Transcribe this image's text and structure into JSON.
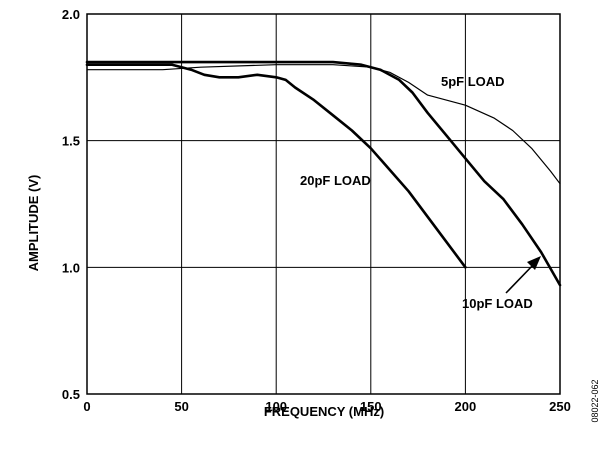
{
  "chart_data": {
    "type": "line",
    "xlabel": "FREQUENCY (MHz)",
    "ylabel": "AMPLITUDE (V)",
    "xlim": [
      0,
      250
    ],
    "ylim": [
      0.5,
      2.0
    ],
    "x_ticks": [
      "0",
      "50",
      "100",
      "150",
      "200",
      "250"
    ],
    "y_ticks": [
      "0.5",
      "1.0",
      "1.5",
      "2.0"
    ],
    "x_tick_values": [
      0,
      50,
      100,
      150,
      200,
      250
    ],
    "y_tick_values": [
      0.5,
      1.0,
      1.5,
      2.0
    ],
    "grid": true,
    "legend": "none",
    "figure_id": "08022-062",
    "series": [
      {
        "name": "5pF LOAD",
        "line_weight": "thin",
        "x": [
          0,
          40,
          60,
          100,
          130,
          150,
          160,
          170,
          180,
          200,
          215,
          225,
          235,
          245,
          250
        ],
        "y": [
          1.78,
          1.78,
          1.79,
          1.8,
          1.8,
          1.79,
          1.77,
          1.73,
          1.68,
          1.64,
          1.59,
          1.54,
          1.47,
          1.38,
          1.33
        ]
      },
      {
        "name": "10pF LOAD",
        "line_weight": "thick",
        "x": [
          0,
          50,
          100,
          130,
          145,
          155,
          165,
          172,
          180,
          190,
          200,
          210,
          220,
          230,
          240,
          250
        ],
        "y": [
          1.81,
          1.81,
          1.81,
          1.81,
          1.8,
          1.78,
          1.74,
          1.69,
          1.61,
          1.52,
          1.43,
          1.34,
          1.27,
          1.17,
          1.06,
          0.93
        ]
      },
      {
        "name": "20pF LOAD",
        "line_weight": "thick",
        "x": [
          0,
          30,
          45,
          55,
          62,
          70,
          80,
          90,
          100,
          105,
          110,
          120,
          130,
          140,
          150,
          170,
          185,
          200
        ],
        "y": [
          1.8,
          1.8,
          1.8,
          1.78,
          1.76,
          1.75,
          1.75,
          1.76,
          1.75,
          1.74,
          1.71,
          1.66,
          1.6,
          1.54,
          1.47,
          1.3,
          1.15,
          1.0
        ]
      }
    ],
    "annotations": [
      {
        "text": "5pF LOAD",
        "series": "5pF LOAD"
      },
      {
        "text": "20pF LOAD",
        "series": "20pF LOAD"
      },
      {
        "text": "10pF LOAD",
        "series": "10pF LOAD",
        "arrow": true
      }
    ]
  }
}
